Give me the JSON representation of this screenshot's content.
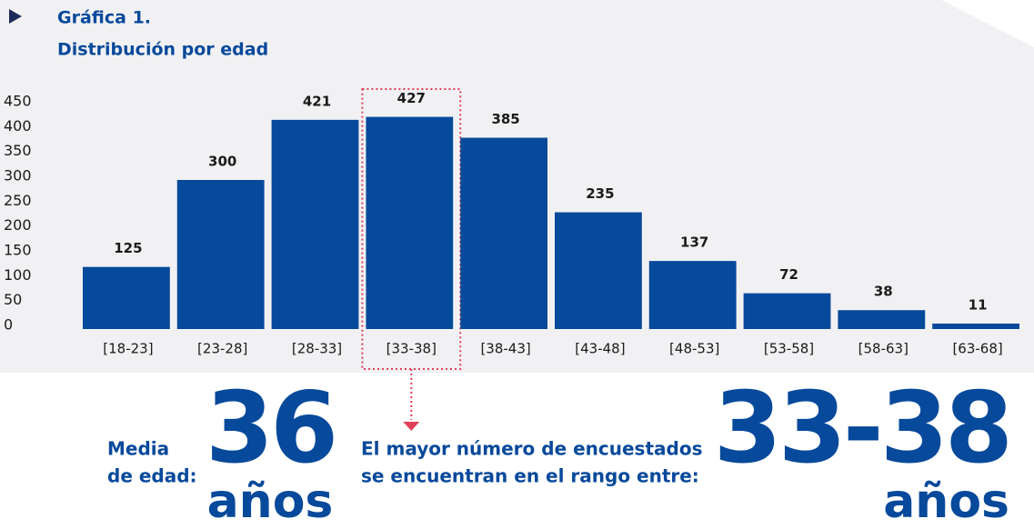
{
  "chart_data": {
    "type": "bar",
    "title": "Gráfica 1.",
    "subtitle": "Distribución por edad",
    "categories": [
      "[18-23]",
      "[23-28]",
      "[28-33]",
      "[33-38]",
      "[38-43]",
      "[43-48]",
      "[48-53]",
      "[53-58]",
      "[58-63]",
      "[63-68]"
    ],
    "values": [
      125,
      300,
      421,
      427,
      385,
      235,
      137,
      72,
      38,
      11
    ],
    "color": "#07499b",
    "ylim": [
      0,
      450
    ],
    "yticks": [
      0,
      50,
      100,
      150,
      200,
      250,
      300,
      350,
      400,
      450
    ],
    "grid": false,
    "highlight_category": "[33-38]"
  },
  "summary": {
    "mean_label": [
      "Media",
      "de edad:"
    ],
    "mean_value": 36,
    "mean_unit": "años",
    "range_label": [
      "El mayor número de encuestados",
      "se encuentran en el rango entre:"
    ],
    "range_value": "33-38",
    "range_unit": "años"
  }
}
